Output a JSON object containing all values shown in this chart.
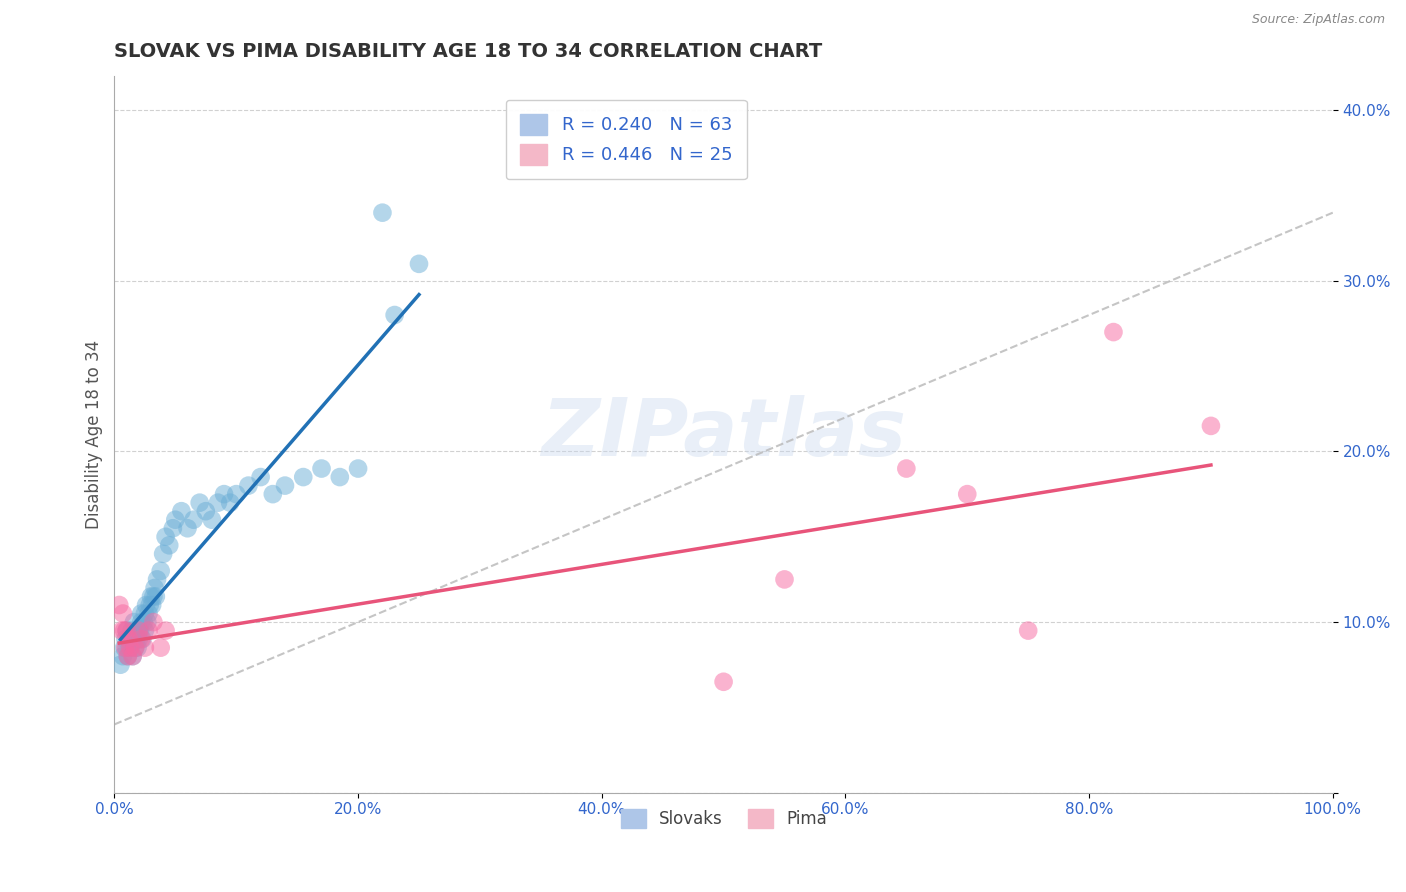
{
  "title": "SLOVAK VS PIMA DISABILITY AGE 18 TO 34 CORRELATION CHART",
  "source_text": "Source: ZipAtlas.com",
  "ylabel": "Disability Age 18 to 34",
  "xlim": [
    0.0,
    1.0
  ],
  "ylim": [
    0.0,
    0.42
  ],
  "xticks": [
    0.0,
    0.2,
    0.4,
    0.6,
    0.8,
    1.0
  ],
  "xticklabels": [
    "0.0%",
    "20.0%",
    "40.0%",
    "60.0%",
    "80.0%",
    "100.0%"
  ],
  "yticks": [
    0.0,
    0.1,
    0.2,
    0.3,
    0.4
  ],
  "yticklabels": [
    "",
    "10.0%",
    "20.0%",
    "30.0%",
    "40.0%"
  ],
  "slovak_color": "#6baed6",
  "pima_color": "#f768a1",
  "slovak_line_color": "#2171b5",
  "pima_line_color": "#e8547a",
  "trend_line_color": "#bbbbbb",
  "watermark_color": "#c8d8ee",
  "background_color": "#ffffff",
  "grid_color": "#cccccc",
  "slovak_x": [
    0.005,
    0.007,
    0.008,
    0.009,
    0.01,
    0.01,
    0.011,
    0.012,
    0.013,
    0.014,
    0.015,
    0.015,
    0.016,
    0.017,
    0.018,
    0.018,
    0.019,
    0.02,
    0.02,
    0.021,
    0.022,
    0.022,
    0.023,
    0.024,
    0.025,
    0.025,
    0.026,
    0.027,
    0.028,
    0.029,
    0.03,
    0.031,
    0.032,
    0.033,
    0.034,
    0.035,
    0.038,
    0.04,
    0.042,
    0.045,
    0.048,
    0.05,
    0.055,
    0.06,
    0.065,
    0.07,
    0.075,
    0.08,
    0.085,
    0.09,
    0.095,
    0.1,
    0.11,
    0.12,
    0.13,
    0.14,
    0.155,
    0.17,
    0.185,
    0.2,
    0.22,
    0.23,
    0.25
  ],
  "slovak_y": [
    0.075,
    0.08,
    0.085,
    0.09,
    0.085,
    0.095,
    0.08,
    0.09,
    0.085,
    0.095,
    0.08,
    0.09,
    0.1,
    0.085,
    0.09,
    0.095,
    0.085,
    0.095,
    0.09,
    0.095,
    0.1,
    0.105,
    0.09,
    0.1,
    0.095,
    0.105,
    0.11,
    0.1,
    0.105,
    0.11,
    0.115,
    0.11,
    0.115,
    0.12,
    0.115,
    0.125,
    0.13,
    0.14,
    0.15,
    0.145,
    0.155,
    0.16,
    0.165,
    0.155,
    0.16,
    0.17,
    0.165,
    0.16,
    0.17,
    0.175,
    0.17,
    0.175,
    0.18,
    0.185,
    0.175,
    0.18,
    0.185,
    0.19,
    0.185,
    0.19,
    0.34,
    0.28,
    0.31
  ],
  "pima_x": [
    0.004,
    0.006,
    0.007,
    0.008,
    0.009,
    0.01,
    0.011,
    0.012,
    0.013,
    0.015,
    0.017,
    0.02,
    0.022,
    0.025,
    0.028,
    0.032,
    0.038,
    0.042,
    0.5,
    0.55,
    0.65,
    0.7,
    0.75,
    0.82,
    0.9
  ],
  "pima_y": [
    0.11,
    0.095,
    0.105,
    0.095,
    0.085,
    0.095,
    0.08,
    0.09,
    0.085,
    0.08,
    0.085,
    0.095,
    0.09,
    0.085,
    0.095,
    0.1,
    0.085,
    0.095,
    0.065,
    0.125,
    0.19,
    0.175,
    0.095,
    0.27,
    0.215
  ]
}
